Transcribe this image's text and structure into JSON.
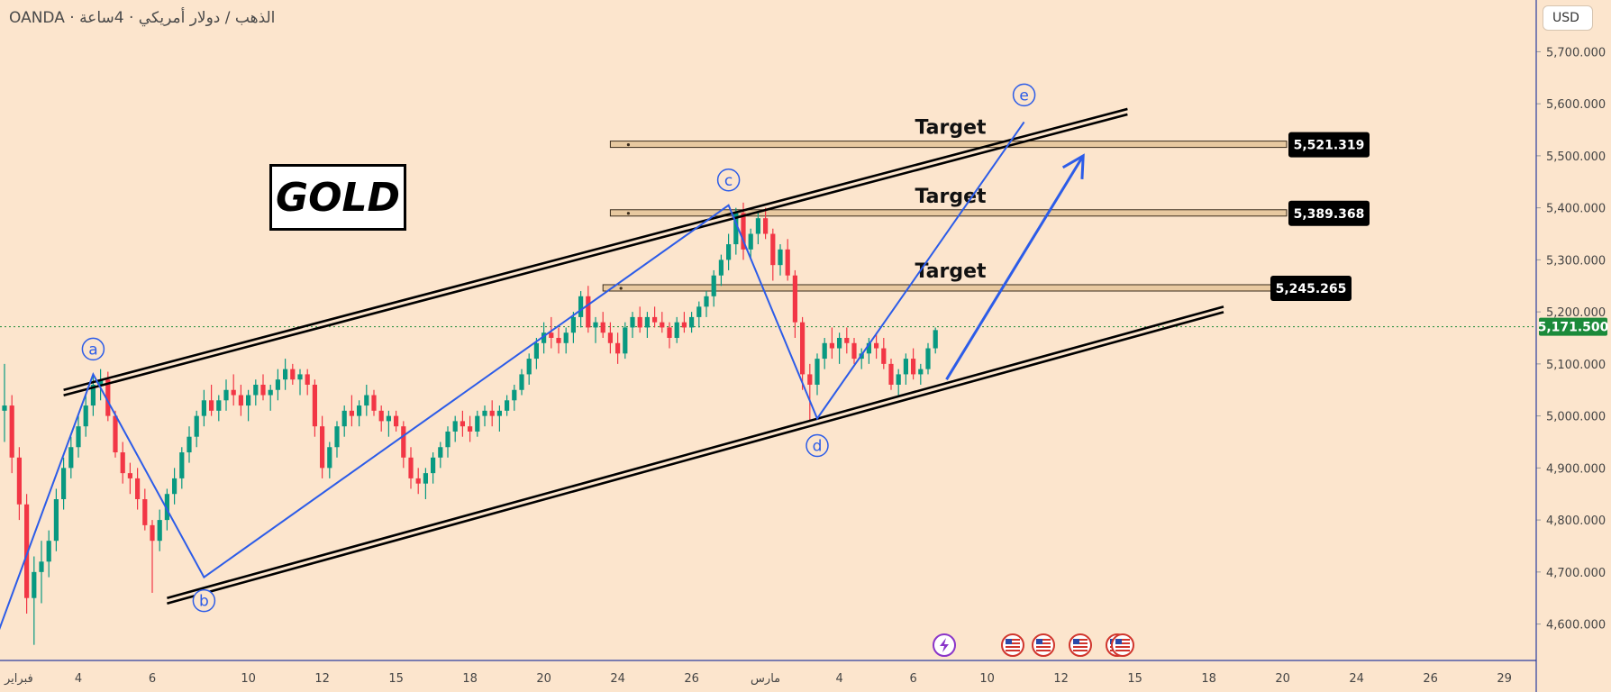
{
  "header": {
    "symbol_title": "OANDA · الذهب / دولار أمريكي · 4ساعة",
    "currency_label": "USD"
  },
  "annotation": {
    "gold_label": "GOLD",
    "target_label": "Target"
  },
  "colors": {
    "background": "#fce5cd",
    "candle_up": "#089981",
    "candle_down": "#f23645",
    "wave_blue": "#2c5ce8",
    "channel": "#000000",
    "zone": "#e8c9a0",
    "last_price": "#1b8a3a"
  },
  "events": {
    "flash_icon": "lightning-icon",
    "us_flag_icon": "us-flag-icon"
  },
  "chart_data": {
    "type": "candlestick",
    "ylim": [
      4530,
      5770
    ],
    "y_ticks": [
      "5,700.000",
      "5,600.000",
      "5,500.000",
      "5,400.000",
      "5,300.000",
      "5,200.000",
      "5,100.000",
      "5,000.000",
      "4,900.000",
      "4,800.000",
      "4,700.000",
      "4,600.000"
    ],
    "y_tick_values": [
      5700,
      5600,
      5500,
      5400,
      5300,
      5200,
      5100,
      5000,
      4900,
      4800,
      4700,
      4600
    ],
    "x_ticks": [
      "فبراير",
      "4",
      "6",
      "10",
      "12",
      "15",
      "18",
      "20",
      "24",
      "26",
      "مارس",
      "4",
      "6",
      "10",
      "12",
      "15",
      "18",
      "20",
      "24",
      "26",
      "29"
    ],
    "x_tick_index": [
      0,
      10,
      20,
      33,
      43,
      53,
      63,
      73,
      83,
      93,
      103,
      113,
      123,
      133,
      143,
      153,
      163,
      173,
      183,
      193,
      203
    ],
    "last_price": {
      "value": 5171.5,
      "label": "5,171.500"
    },
    "targets": [
      {
        "label": "5,521.319",
        "value": 5521.319,
        "from_index": 82
      },
      {
        "label": "5,389.368",
        "value": 5389.368,
        "from_index": 82
      },
      {
        "label": "5,245.265",
        "value": 5245.265,
        "from_index": 81
      }
    ],
    "waves": [
      {
        "label": "a",
        "index": 12,
        "value": 5080
      },
      {
        "label": "b",
        "index": 27,
        "value": 4690
      },
      {
        "label": "c",
        "index": 98,
        "value": 5405
      },
      {
        "label": "d",
        "index": 110,
        "value": 4995
      },
      {
        "label": "e",
        "index": 138,
        "value": 5565
      }
    ],
    "channel": {
      "upper": [
        [
          8,
          5050
        ],
        [
          152,
          5590
        ]
      ],
      "lower": [
        [
          22,
          4650
        ],
        [
          165,
          5210
        ]
      ]
    },
    "candles": [
      [
        5010,
        5100,
        4950,
        5020
      ],
      [
        5020,
        5040,
        4890,
        4920
      ],
      [
        4920,
        4940,
        4800,
        4830
      ],
      [
        4830,
        4850,
        4620,
        4650
      ],
      [
        4650,
        4730,
        4560,
        4700
      ],
      [
        4700,
        4760,
        4640,
        4720
      ],
      [
        4720,
        4780,
        4690,
        4760
      ],
      [
        4760,
        4860,
        4740,
        4840
      ],
      [
        4840,
        4920,
        4820,
        4900
      ],
      [
        4900,
        4960,
        4880,
        4940
      ],
      [
        4940,
        5000,
        4920,
        4980
      ],
      [
        4980,
        5040,
        4960,
        5020
      ],
      [
        5020,
        5080,
        5000,
        5060
      ],
      [
        5060,
        5090,
        5030,
        5070
      ],
      [
        5070,
        5085,
        4990,
        5000
      ],
      [
        5000,
        5010,
        4920,
        4930
      ],
      [
        4930,
        4950,
        4870,
        4890
      ],
      [
        4890,
        4910,
        4850,
        4880
      ],
      [
        4880,
        4900,
        4820,
        4840
      ],
      [
        4840,
        4860,
        4780,
        4790
      ],
      [
        4790,
        4800,
        4660,
        4760
      ],
      [
        4760,
        4820,
        4740,
        4800
      ],
      [
        4800,
        4860,
        4780,
        4850
      ],
      [
        4850,
        4900,
        4830,
        4880
      ],
      [
        4880,
        4940,
        4860,
        4930
      ],
      [
        4930,
        4980,
        4910,
        4960
      ],
      [
        4960,
        5010,
        4940,
        5000
      ],
      [
        5000,
        5050,
        4980,
        5030
      ],
      [
        5030,
        5060,
        5000,
        5010
      ],
      [
        5010,
        5040,
        4990,
        5030
      ],
      [
        5030,
        5070,
        5010,
        5050
      ],
      [
        5050,
        5080,
        5020,
        5040
      ],
      [
        5040,
        5060,
        5000,
        5020
      ],
      [
        5020,
        5050,
        4990,
        5040
      ],
      [
        5040,
        5070,
        5020,
        5060
      ],
      [
        5060,
        5080,
        5030,
        5040
      ],
      [
        5040,
        5060,
        5010,
        5050
      ],
      [
        5050,
        5090,
        5030,
        5070
      ],
      [
        5070,
        5110,
        5050,
        5090
      ],
      [
        5090,
        5100,
        5060,
        5070
      ],
      [
        5070,
        5090,
        5040,
        5080
      ],
      [
        5080,
        5090,
        5040,
        5060
      ],
      [
        5060,
        5070,
        4960,
        4980
      ],
      [
        4980,
        5000,
        4880,
        4900
      ],
      [
        4900,
        4950,
        4880,
        4940
      ],
      [
        4940,
        4990,
        4920,
        4980
      ],
      [
        4980,
        5020,
        4960,
        5010
      ],
      [
        5010,
        5040,
        4980,
        5000
      ],
      [
        5000,
        5030,
        4980,
        5020
      ],
      [
        5020,
        5060,
        5000,
        5040
      ],
      [
        5040,
        5050,
        5000,
        5010
      ],
      [
        5010,
        5020,
        4970,
        4990
      ],
      [
        4990,
        5010,
        4960,
        5000
      ],
      [
        5000,
        5010,
        4970,
        4980
      ],
      [
        4980,
        4990,
        4900,
        4920
      ],
      [
        4920,
        4940,
        4860,
        4880
      ],
      [
        4880,
        4900,
        4850,
        4870
      ],
      [
        4870,
        4900,
        4840,
        4890
      ],
      [
        4890,
        4930,
        4870,
        4920
      ],
      [
        4920,
        4950,
        4900,
        4940
      ],
      [
        4940,
        4980,
        4920,
        4970
      ],
      [
        4970,
        5000,
        4950,
        4990
      ],
      [
        4990,
        5010,
        4960,
        4980
      ],
      [
        4980,
        5000,
        4950,
        4970
      ],
      [
        4970,
        5010,
        4960,
        5000
      ],
      [
        5000,
        5020,
        4980,
        5010
      ],
      [
        5010,
        5030,
        4980,
        5000
      ],
      [
        5000,
        5020,
        4970,
        5010
      ],
      [
        5010,
        5040,
        5000,
        5030
      ],
      [
        5030,
        5060,
        5010,
        5050
      ],
      [
        5050,
        5090,
        5040,
        5080
      ],
      [
        5080,
        5120,
        5060,
        5110
      ],
      [
        5110,
        5150,
        5090,
        5140
      ],
      [
        5140,
        5180,
        5120,
        5160
      ],
      [
        5160,
        5190,
        5130,
        5150
      ],
      [
        5150,
        5170,
        5120,
        5140
      ],
      [
        5140,
        5170,
        5120,
        5160
      ],
      [
        5160,
        5200,
        5140,
        5190
      ],
      [
        5190,
        5240,
        5170,
        5230
      ],
      [
        5230,
        5250,
        5160,
        5170
      ],
      [
        5170,
        5190,
        5140,
        5180
      ],
      [
        5180,
        5200,
        5150,
        5160
      ],
      [
        5160,
        5180,
        5120,
        5140
      ],
      [
        5140,
        5160,
        5100,
        5120
      ],
      [
        5120,
        5180,
        5110,
        5170
      ],
      [
        5170,
        5200,
        5150,
        5190
      ],
      [
        5190,
        5210,
        5160,
        5170
      ],
      [
        5170,
        5200,
        5150,
        5190
      ],
      [
        5190,
        5210,
        5170,
        5180
      ],
      [
        5180,
        5200,
        5160,
        5170
      ],
      [
        5170,
        5180,
        5130,
        5150
      ],
      [
        5150,
        5190,
        5140,
        5180
      ],
      [
        5180,
        5200,
        5160,
        5170
      ],
      [
        5170,
        5200,
        5160,
        5190
      ],
      [
        5190,
        5220,
        5170,
        5210
      ],
      [
        5210,
        5240,
        5190,
        5230
      ],
      [
        5230,
        5280,
        5210,
        5270
      ],
      [
        5270,
        5310,
        5250,
        5300
      ],
      [
        5300,
        5350,
        5280,
        5330
      ],
      [
        5330,
        5400,
        5310,
        5390
      ],
      [
        5390,
        5410,
        5300,
        5320
      ],
      [
        5320,
        5360,
        5300,
        5350
      ],
      [
        5350,
        5390,
        5330,
        5380
      ],
      [
        5380,
        5400,
        5340,
        5350
      ],
      [
        5350,
        5360,
        5260,
        5290
      ],
      [
        5290,
        5330,
        5270,
        5320
      ],
      [
        5320,
        5340,
        5260,
        5270
      ],
      [
        5270,
        5280,
        5150,
        5180
      ],
      [
        5180,
        5190,
        5050,
        5080
      ],
      [
        5080,
        5100,
        4990,
        5060
      ],
      [
        5060,
        5120,
        5040,
        5110
      ],
      [
        5110,
        5150,
        5090,
        5140
      ],
      [
        5140,
        5170,
        5110,
        5130
      ],
      [
        5130,
        5160,
        5100,
        5150
      ],
      [
        5150,
        5170,
        5120,
        5140
      ],
      [
        5140,
        5150,
        5100,
        5110
      ],
      [
        5110,
        5130,
        5090,
        5120
      ],
      [
        5120,
        5150,
        5100,
        5140
      ],
      [
        5140,
        5160,
        5110,
        5130
      ],
      [
        5130,
        5150,
        5090,
        5100
      ],
      [
        5100,
        5110,
        5050,
        5060
      ],
      [
        5060,
        5090,
        5040,
        5080
      ],
      [
        5080,
        5120,
        5060,
        5110
      ],
      [
        5110,
        5130,
        5070,
        5080
      ],
      [
        5080,
        5100,
        5060,
        5090
      ],
      [
        5090,
        5140,
        5080,
        5130
      ],
      [
        5130,
        5170,
        5120,
        5165
      ]
    ]
  }
}
